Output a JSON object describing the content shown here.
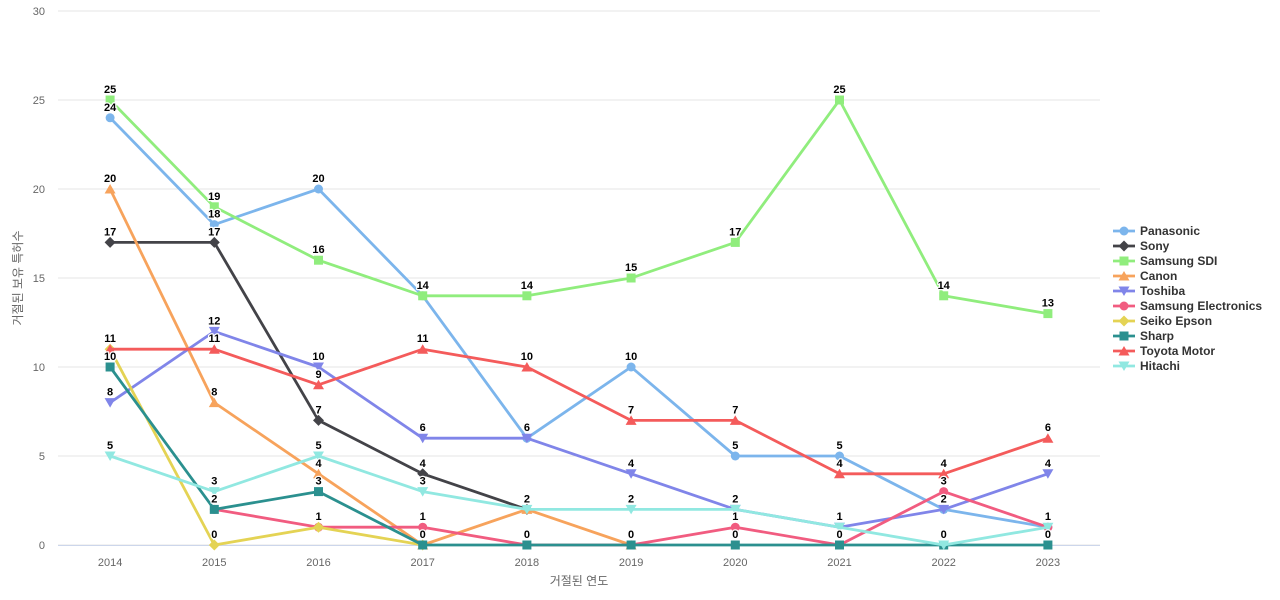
{
  "chart_data": {
    "type": "line",
    "x": [
      "2014",
      "2015",
      "2016",
      "2017",
      "2018",
      "2019",
      "2020",
      "2021",
      "2022",
      "2023"
    ],
    "xlabel": "거절된 연도",
    "ylabel": "거절된 보유 특허수",
    "ylim": [
      0,
      30
    ],
    "yticks": [
      0,
      5,
      10,
      15,
      20,
      25,
      30
    ],
    "grid": true,
    "legend_position": "right",
    "data_labels": true,
    "series": [
      {
        "name": "Panasonic",
        "color": "#7cb5ec",
        "marker": "circle",
        "values": [
          24,
          18,
          20,
          14,
          6,
          10,
          5,
          5,
          2,
          1
        ]
      },
      {
        "name": "Sony",
        "color": "#434348",
        "marker": "diamond",
        "values": [
          17,
          17,
          7,
          4,
          2,
          null,
          null,
          null,
          null,
          null
        ]
      },
      {
        "name": "Samsung SDI",
        "color": "#90ed7d",
        "marker": "square",
        "values": [
          25,
          19,
          16,
          14,
          14,
          15,
          17,
          25,
          14,
          13
        ]
      },
      {
        "name": "Canon",
        "color": "#f7a35c",
        "marker": "triangle",
        "values": [
          20,
          8,
          4,
          0,
          2,
          0,
          null,
          null,
          null,
          null
        ]
      },
      {
        "name": "Toshiba",
        "color": "#8085e9",
        "marker": "triangle-down",
        "values": [
          8,
          12,
          10,
          6,
          6,
          4,
          2,
          1,
          2,
          4
        ]
      },
      {
        "name": "Samsung Electronics",
        "color": "#f15c80",
        "marker": "circle",
        "values": [
          null,
          2,
          1,
          1,
          0,
          0,
          1,
          0,
          3,
          1
        ]
      },
      {
        "name": "Seiko Epson",
        "color": "#e4d354",
        "marker": "diamond",
        "values": [
          11,
          0,
          1,
          0,
          null,
          null,
          null,
          null,
          null,
          null
        ]
      },
      {
        "name": "Sharp",
        "color": "#2b908f",
        "marker": "square",
        "values": [
          10,
          2,
          3,
          0,
          0,
          0,
          0,
          0,
          0,
          0
        ]
      },
      {
        "name": "Toyota Motor",
        "color": "#f45b5b",
        "marker": "triangle",
        "values": [
          11,
          11,
          9,
          11,
          10,
          7,
          7,
          4,
          4,
          6
        ]
      },
      {
        "name": "Hitachi",
        "color": "#91e8e1",
        "marker": "triangle-down",
        "values": [
          5,
          3,
          5,
          3,
          2,
          2,
          2,
          1,
          0,
          1
        ]
      }
    ],
    "colors": {
      "grid": "#e6e6e6",
      "axis_line": "#ccd6eb",
      "tick_text": "#666666",
      "axis_title": "#666666",
      "data_label": "#000000",
      "legend_text": "#333333",
      "background": "#ffffff"
    }
  }
}
